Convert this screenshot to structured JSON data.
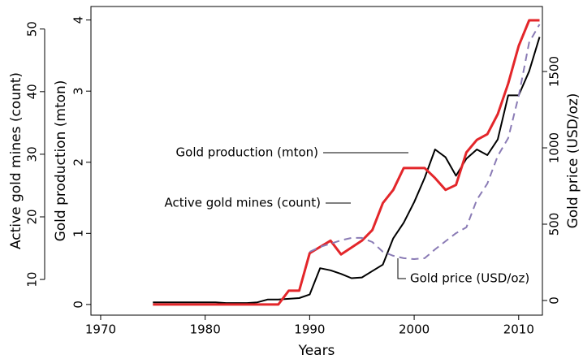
{
  "chart_data": {
    "type": "line",
    "xlabel": "Years",
    "ylabel": "Gold production (mton)",
    "y2label": "Gold price (USD/oz)",
    "y3label": "Active gold mines (count)",
    "x": [
      1975,
      1976,
      1977,
      1978,
      1979,
      1980,
      1981,
      1982,
      1983,
      1984,
      1985,
      1986,
      1987,
      1988,
      1989,
      1990,
      1991,
      1992,
      1993,
      1994,
      1995,
      1996,
      1997,
      1998,
      1999,
      2000,
      2001,
      2002,
      2003,
      2004,
      2005,
      2006,
      2007,
      2008,
      2009,
      2010,
      2011,
      2012
    ],
    "xlim": [
      1969.07,
      2012.27
    ],
    "xticks": [
      1970,
      1980,
      1990,
      2000,
      2010
    ],
    "ylim": [
      -0.15,
      4.19
    ],
    "yticks": [
      0,
      1,
      2,
      3,
      4
    ],
    "y2lim": [
      -96,
      1926
    ],
    "y2ticks": [
      0,
      500,
      1000,
      1500
    ],
    "y3lim": [
      4.3,
      53.6
    ],
    "y3ticks": [
      10,
      20,
      30,
      40,
      50
    ],
    "series": [
      {
        "name": "Gold production (mton)",
        "color": "#000000",
        "axis": "y",
        "values": [
          0.03,
          0.03,
          0.03,
          0.03,
          0.03,
          0.03,
          0.03,
          0.02,
          0.02,
          0.02,
          0.03,
          0.07,
          0.07,
          0.08,
          0.09,
          0.14,
          0.51,
          0.48,
          0.43,
          0.37,
          0.38,
          0.47,
          0.56,
          0.93,
          1.15,
          1.44,
          1.78,
          2.18,
          2.07,
          1.81,
          2.05,
          2.18,
          2.1,
          2.32,
          2.94,
          2.94,
          3.28,
          3.76
        ]
      },
      {
        "name": "Active gold mines (count)",
        "color": "#e3262a",
        "axis": "y3",
        "values": [
          6.0,
          6.0,
          6.0,
          6.0,
          6.0,
          6.0,
          6.0,
          6.0,
          6.0,
          6.0,
          6.0,
          6.0,
          6.0,
          8.2,
          8.2,
          14.2,
          15.2,
          16.2,
          14.0,
          15.1,
          16.2,
          17.9,
          22.2,
          24.3,
          27.8,
          27.8,
          27.8,
          26.2,
          24.3,
          25.1,
          30.3,
          32.3,
          33.2,
          36.4,
          41.3,
          47.3,
          51.4,
          51.4
        ]
      },
      {
        "name": "Gold price (USD/oz)",
        "color": "#8a7bb5",
        "axis": "y2",
        "dashed": true,
        "values": [
          null,
          null,
          null,
          null,
          null,
          null,
          null,
          null,
          null,
          null,
          null,
          null,
          null,
          null,
          null,
          319,
          351,
          372,
          394,
          410,
          410,
          383,
          319,
          293,
          277,
          271,
          277,
          335,
          388,
          441,
          479,
          660,
          766,
          947,
          1064,
          1340,
          1691,
          1809
        ]
      }
    ]
  }
}
